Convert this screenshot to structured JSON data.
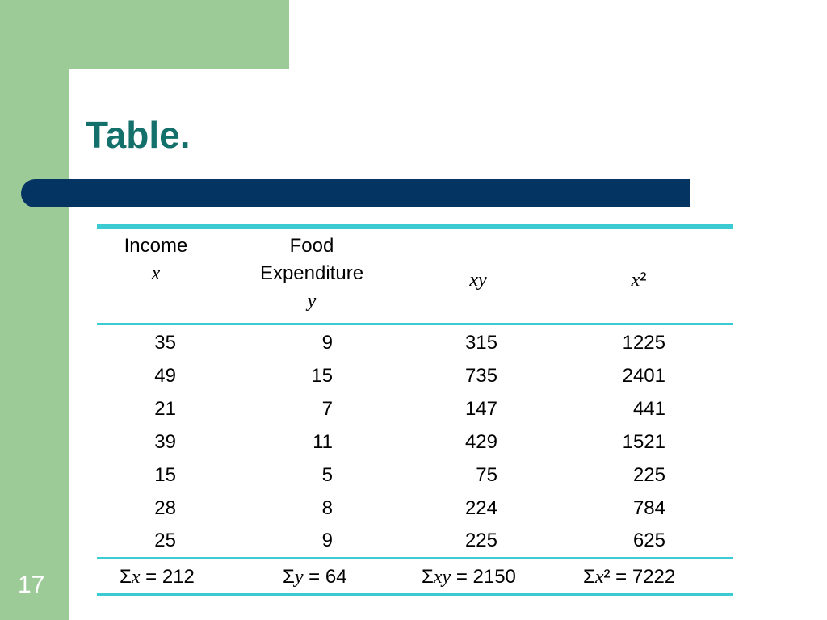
{
  "slide": {
    "title": "Table.",
    "number": "17"
  },
  "table": {
    "headers": [
      {
        "label": "Income",
        "var": "x"
      },
      {
        "label_line1": "Food",
        "label_line2": "Expenditure",
        "var": "y"
      },
      {
        "var": "xy"
      },
      {
        "var": "x",
        "sup": "²"
      }
    ],
    "rows": [
      [
        "35",
        "9",
        "315",
        "1225"
      ],
      [
        "49",
        "15",
        "735",
        "2401"
      ],
      [
        "21",
        "7",
        "147",
        "441"
      ],
      [
        "39",
        "11",
        "429",
        "1521"
      ],
      [
        "15",
        "5",
        "75",
        "225"
      ],
      [
        "28",
        "8",
        "224",
        "784"
      ],
      [
        "25",
        "9",
        "225",
        "625"
      ]
    ],
    "sums": [
      {
        "sigma": "Σ",
        "var": "x",
        "rest": " = 212"
      },
      {
        "sigma": "Σ",
        "var": "y",
        "rest": " = 64"
      },
      {
        "sigma": "Σ",
        "var": "xy",
        "rest": " = 2150"
      },
      {
        "sigma": "Σ",
        "var": "x",
        "rest": "² = 7222"
      }
    ]
  }
}
